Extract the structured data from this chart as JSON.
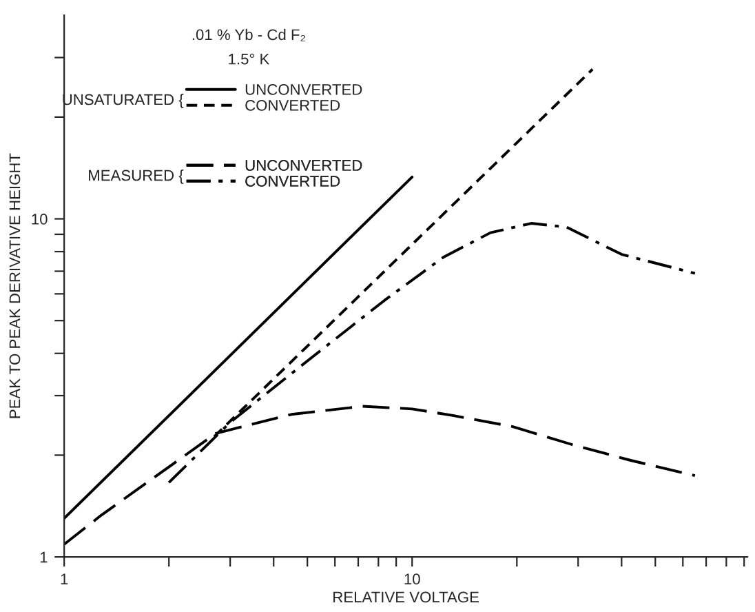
{
  "chart_data": {
    "type": "line",
    "title": ".01 % Yb - Cd F₂",
    "subtitle": "1.5° K",
    "xlabel": "RELATIVE VOLTAGE",
    "ylabel": "PEAK TO PEAK DERIVATIVE HEIGHT",
    "log": "xy",
    "xlim": [
      1,
      92
    ],
    "ylim": [
      1,
      40
    ],
    "xticks": [
      1,
      {
        "value": 2,
        "label": null
      },
      {
        "value": 3,
        "label": null
      },
      {
        "value": 4,
        "label": null
      },
      {
        "value": 5,
        "label": null
      },
      {
        "value": 6,
        "label": null
      },
      {
        "value": 7,
        "label": null
      },
      {
        "value": 8,
        "label": null
      },
      {
        "value": 9,
        "label": null
      },
      10,
      {
        "value": 20,
        "label": null
      },
      {
        "value": 30,
        "label": null
      },
      {
        "value": 40,
        "label": null
      },
      {
        "value": 50,
        "label": null
      },
      {
        "value": 60,
        "label": null
      },
      {
        "value": 70,
        "label": null
      },
      {
        "value": 80,
        "label": null
      },
      {
        "value": 90,
        "label": null
      }
    ],
    "yticks": [
      1,
      {
        "value": 2,
        "label": null
      },
      {
        "value": 3,
        "label": null
      },
      {
        "value": 4,
        "label": null
      },
      {
        "value": 5,
        "label": null
      },
      {
        "value": 6,
        "label": null
      },
      {
        "value": 7,
        "label": null
      },
      {
        "value": 8,
        "label": null
      },
      {
        "value": 9,
        "label": null
      },
      10,
      {
        "value": 20,
        "label": null
      },
      {
        "value": 30,
        "label": null
      }
    ],
    "grid": false,
    "legend": "top left",
    "marker": "none",
    "annotations": [
      "UNSATURATED {",
      "MEASURED {"
    ],
    "series": [
      {
        "name": "UNCONVERTED",
        "color": "#000000",
        "line_style": "solid",
        "x": [
          1,
          10
        ],
        "values": [
          1.3,
          13.3
        ]
      },
      {
        "name": "CONVERTED",
        "color": "#000000",
        "line_style": "dashed",
        "x": [
          2.7,
          33
        ],
        "values": [
          2.27,
          27.7
        ]
      },
      {
        "name": "UNCONVERTED",
        "color": "#000000",
        "line_style": "longdash",
        "x": [
          1,
          1.28,
          2.2,
          2.73,
          4.5,
          7.2,
          10,
          13.1,
          19.4,
          28.8,
          42.5,
          65
        ],
        "values": [
          1.09,
          1.33,
          1.98,
          2.32,
          2.64,
          2.79,
          2.74,
          2.62,
          2.43,
          2.15,
          1.93,
          1.74
        ]
      },
      {
        "name": "CONVERTED",
        "color": "#000000",
        "line_style": "dashdot",
        "x": [
          2,
          3,
          5,
          8.35,
          12.3,
          16.8,
          22,
          27.8,
          40,
          65
        ],
        "values": [
          1.66,
          2.5,
          3.8,
          5.75,
          7.7,
          9.1,
          9.7,
          9.45,
          7.85,
          6.9
        ]
      }
    ]
  }
}
